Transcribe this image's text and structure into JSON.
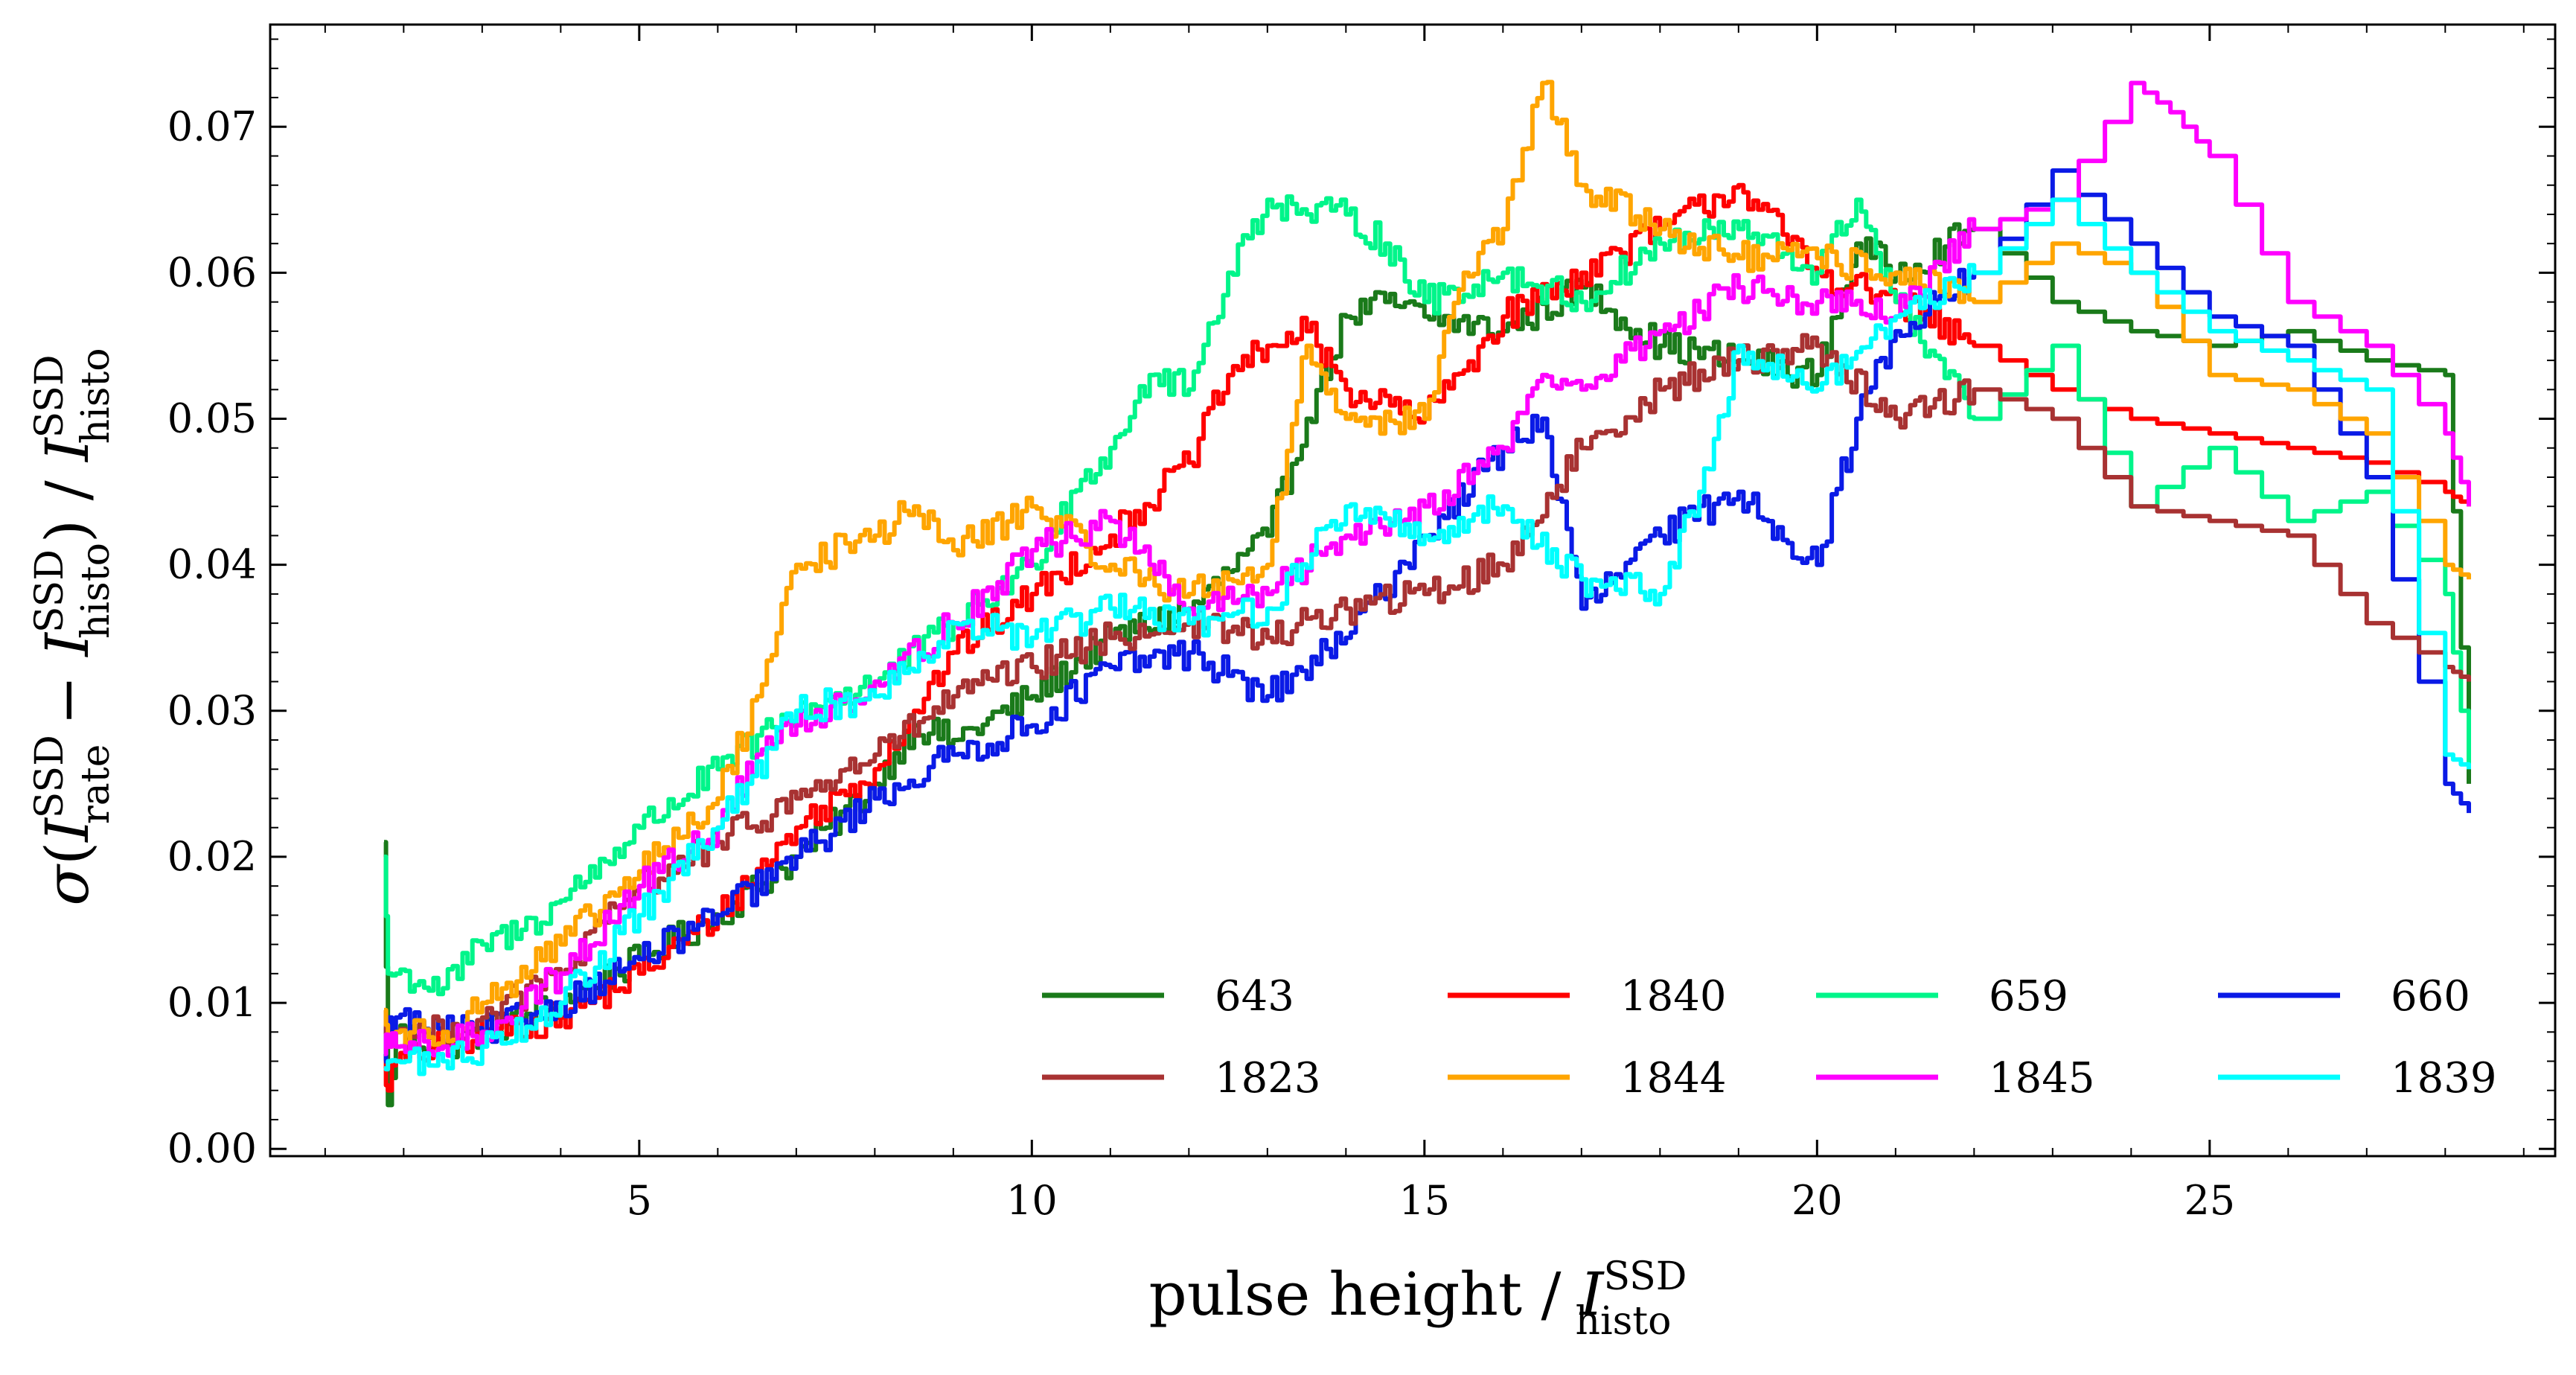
{
  "chart_data": {
    "type": "line",
    "xlabel_text": "pulse height",
    "xlabel_sep": "/",
    "xlabel_sym": "I",
    "xlabel_sup": "SSD",
    "xlabel_sub": "histo",
    "ylabel_sigma": "σ",
    "ylabel_sym": "I",
    "ylabel_sup": "SSD",
    "ylabel_sub_a": "rate",
    "ylabel_minus": "−",
    "ylabel_sub_b": "histo",
    "ylabel_sep": "/",
    "xlim": [
      0.3,
      29.4
    ],
    "ylim": [
      -0.0005,
      0.077
    ],
    "xticks": [
      5,
      10,
      15,
      20,
      25
    ],
    "xtick_labels": [
      "5",
      "10",
      "15",
      "20",
      "25"
    ],
    "yticks": [
      0.0,
      0.01,
      0.02,
      0.03,
      0.04,
      0.05,
      0.06,
      0.07
    ],
    "ytick_labels": [
      "0.00",
      "0.01",
      "0.02",
      "0.03",
      "0.04",
      "0.05",
      "0.06",
      "0.07"
    ],
    "grid": false,
    "legend_position": "bottom-right",
    "legend_columns": 4,
    "series": [
      {
        "name": "643",
        "color": "#1a7a1a",
        "x": [
          1.75,
          1.8,
          1.9,
          2.5,
          3.0,
          4.0,
          5.0,
          6.0,
          7.0,
          8.0,
          8.5,
          9.0,
          10.0,
          11.0,
          12.0,
          13.0,
          13.5,
          14.0,
          14.5,
          15.0,
          16.0,
          17.0,
          18.0,
          19.0,
          20.0,
          20.5,
          21.0,
          22.0,
          23.0,
          24.0,
          25.0,
          26.0,
          27.0,
          28.0,
          28.3
        ],
        "y": [
          0.021,
          0.003,
          0.008,
          0.007,
          0.008,
          0.01,
          0.013,
          0.016,
          0.02,
          0.025,
          0.029,
          0.028,
          0.031,
          0.035,
          0.037,
          0.042,
          0.05,
          0.057,
          0.058,
          0.057,
          0.056,
          0.059,
          0.055,
          0.054,
          0.053,
          0.062,
          0.06,
          0.063,
          0.058,
          0.056,
          0.055,
          0.056,
          0.054,
          0.053,
          0.025
        ]
      },
      {
        "name": "1840",
        "color": "#ff0000",
        "x": [
          1.75,
          1.8,
          1.9,
          2.5,
          3.0,
          4.0,
          5.0,
          6.0,
          7.0,
          8.0,
          8.5,
          9.0,
          10.0,
          11.0,
          12.0,
          12.5,
          13.0,
          13.5,
          14.0,
          15.0,
          16.0,
          17.0,
          18.0,
          19.0,
          20.0,
          21.0,
          22.0,
          23.0,
          24.0,
          25.0,
          26.0,
          27.0,
          28.0,
          28.3
        ],
        "y": [
          0.0065,
          0.004,
          0.006,
          0.007,
          0.008,
          0.009,
          0.012,
          0.016,
          0.022,
          0.026,
          0.03,
          0.034,
          0.038,
          0.042,
          0.047,
          0.053,
          0.055,
          0.056,
          0.052,
          0.05,
          0.057,
          0.06,
          0.063,
          0.066,
          0.06,
          0.058,
          0.055,
          0.052,
          0.05,
          0.049,
          0.048,
          0.047,
          0.045,
          0.044
        ]
      },
      {
        "name": "659",
        "color": "#00f58a",
        "x": [
          1.75,
          1.8,
          1.9,
          2.5,
          3.0,
          3.5,
          4.0,
          5.0,
          6.0,
          7.0,
          8.0,
          9.0,
          10.0,
          10.5,
          11.0,
          11.5,
          12.0,
          12.5,
          13.0,
          13.5,
          14.0,
          14.5,
          15.0,
          16.0,
          17.0,
          18.0,
          19.0,
          20.0,
          20.5,
          21.0,
          22.0,
          23.0,
          24.0,
          25.0,
          26.0,
          27.0,
          28.0,
          28.3
        ],
        "y": [
          0.02,
          0.012,
          0.012,
          0.011,
          0.014,
          0.015,
          0.017,
          0.022,
          0.026,
          0.03,
          0.032,
          0.036,
          0.04,
          0.045,
          0.048,
          0.053,
          0.052,
          0.06,
          0.065,
          0.064,
          0.064,
          0.062,
          0.058,
          0.06,
          0.058,
          0.062,
          0.063,
          0.06,
          0.065,
          0.058,
          0.05,
          0.055,
          0.044,
          0.048,
          0.043,
          0.045,
          0.038,
          0.026
        ]
      },
      {
        "name": "660",
        "color": "#0a1ae6",
        "x": [
          1.75,
          1.8,
          1.9,
          2.5,
          3.0,
          4.0,
          5.0,
          6.0,
          7.0,
          8.0,
          9.0,
          10.0,
          11.0,
          12.0,
          13.0,
          14.0,
          15.0,
          16.0,
          16.5,
          17.0,
          18.0,
          19.0,
          20.0,
          20.5,
          21.0,
          22.0,
          23.0,
          24.0,
          25.0,
          26.0,
          27.0,
          28.0,
          28.3
        ],
        "y": [
          0.006,
          0.009,
          0.009,
          0.008,
          0.008,
          0.01,
          0.013,
          0.016,
          0.02,
          0.024,
          0.027,
          0.029,
          0.033,
          0.034,
          0.031,
          0.035,
          0.042,
          0.048,
          0.05,
          0.037,
          0.042,
          0.045,
          0.04,
          0.05,
          0.056,
          0.06,
          0.067,
          0.062,
          0.057,
          0.055,
          0.046,
          0.025,
          0.023
        ]
      },
      {
        "name": "1823",
        "color": "#a83232",
        "x": [
          1.75,
          1.8,
          1.9,
          2.5,
          3.0,
          4.0,
          5.0,
          6.0,
          7.0,
          8.0,
          9.0,
          10.0,
          11.0,
          12.0,
          13.0,
          14.0,
          15.0,
          16.0,
          17.0,
          18.0,
          19.0,
          20.0,
          21.0,
          22.0,
          23.0,
          24.0,
          25.0,
          26.0,
          27.0,
          28.0,
          28.3
        ],
        "y": [
          0.0095,
          0.007,
          0.008,
          0.008,
          0.009,
          0.012,
          0.018,
          0.021,
          0.024,
          0.027,
          0.031,
          0.033,
          0.035,
          0.036,
          0.035,
          0.037,
          0.038,
          0.04,
          0.048,
          0.052,
          0.054,
          0.055,
          0.05,
          0.052,
          0.05,
          0.044,
          0.043,
          0.042,
          0.036,
          0.033,
          0.032
        ]
      },
      {
        "name": "1844",
        "color": "#ffa500",
        "x": [
          1.75,
          1.8,
          1.9,
          2.5,
          3.0,
          4.0,
          5.0,
          6.0,
          6.5,
          7.0,
          8.0,
          8.5,
          9.0,
          10.0,
          11.0,
          12.0,
          12.5,
          13.0,
          13.5,
          14.0,
          15.0,
          15.5,
          16.0,
          16.5,
          17.0,
          18.0,
          19.0,
          20.0,
          21.0,
          22.0,
          23.0,
          24.0,
          25.0,
          26.0,
          27.0,
          28.0,
          28.3
        ],
        "y": [
          0.0095,
          0.007,
          0.008,
          0.008,
          0.01,
          0.014,
          0.019,
          0.024,
          0.031,
          0.04,
          0.042,
          0.044,
          0.041,
          0.044,
          0.04,
          0.038,
          0.039,
          0.04,
          0.055,
          0.05,
          0.05,
          0.06,
          0.063,
          0.073,
          0.066,
          0.063,
          0.061,
          0.061,
          0.06,
          0.058,
          0.062,
          0.06,
          0.053,
          0.052,
          0.049,
          0.04,
          0.039
        ]
      },
      {
        "name": "1845",
        "color": "#ff00ff",
        "x": [
          1.75,
          1.8,
          1.9,
          2.5,
          3.0,
          4.0,
          5.0,
          6.0,
          6.5,
          7.0,
          8.0,
          9.0,
          10.0,
          11.0,
          11.5,
          12.0,
          13.0,
          14.0,
          15.0,
          16.0,
          16.5,
          17.0,
          18.0,
          19.0,
          20.0,
          21.0,
          22.0,
          23.0,
          24.0,
          24.5,
          25.0,
          26.0,
          27.0,
          28.0,
          28.3
        ],
        "y": [
          0.0065,
          0.007,
          0.007,
          0.007,
          0.008,
          0.012,
          0.018,
          0.022,
          0.027,
          0.029,
          0.032,
          0.036,
          0.041,
          0.043,
          0.04,
          0.037,
          0.038,
          0.042,
          0.044,
          0.048,
          0.053,
          0.052,
          0.056,
          0.059,
          0.058,
          0.057,
          0.063,
          0.065,
          0.073,
          0.071,
          0.068,
          0.058,
          0.055,
          0.049,
          0.044
        ]
      },
      {
        "name": "1839",
        "color": "#00ffff",
        "x": [
          1.75,
          1.8,
          1.9,
          2.5,
          3.0,
          4.0,
          5.0,
          6.0,
          7.0,
          8.0,
          9.0,
          10.0,
          11.0,
          12.0,
          13.0,
          14.0,
          15.0,
          16.0,
          17.0,
          18.0,
          18.5,
          19.0,
          20.0,
          21.0,
          22.0,
          23.0,
          24.0,
          25.0,
          26.0,
          27.0,
          28.0,
          28.3
        ],
        "y": [
          0.0055,
          0.006,
          0.006,
          0.006,
          0.007,
          0.01,
          0.016,
          0.022,
          0.03,
          0.031,
          0.036,
          0.035,
          0.037,
          0.036,
          0.037,
          0.044,
          0.042,
          0.044,
          0.039,
          0.038,
          0.045,
          0.055,
          0.052,
          0.057,
          0.06,
          0.065,
          0.06,
          0.056,
          0.054,
          0.052,
          0.027,
          0.026
        ]
      }
    ]
  }
}
